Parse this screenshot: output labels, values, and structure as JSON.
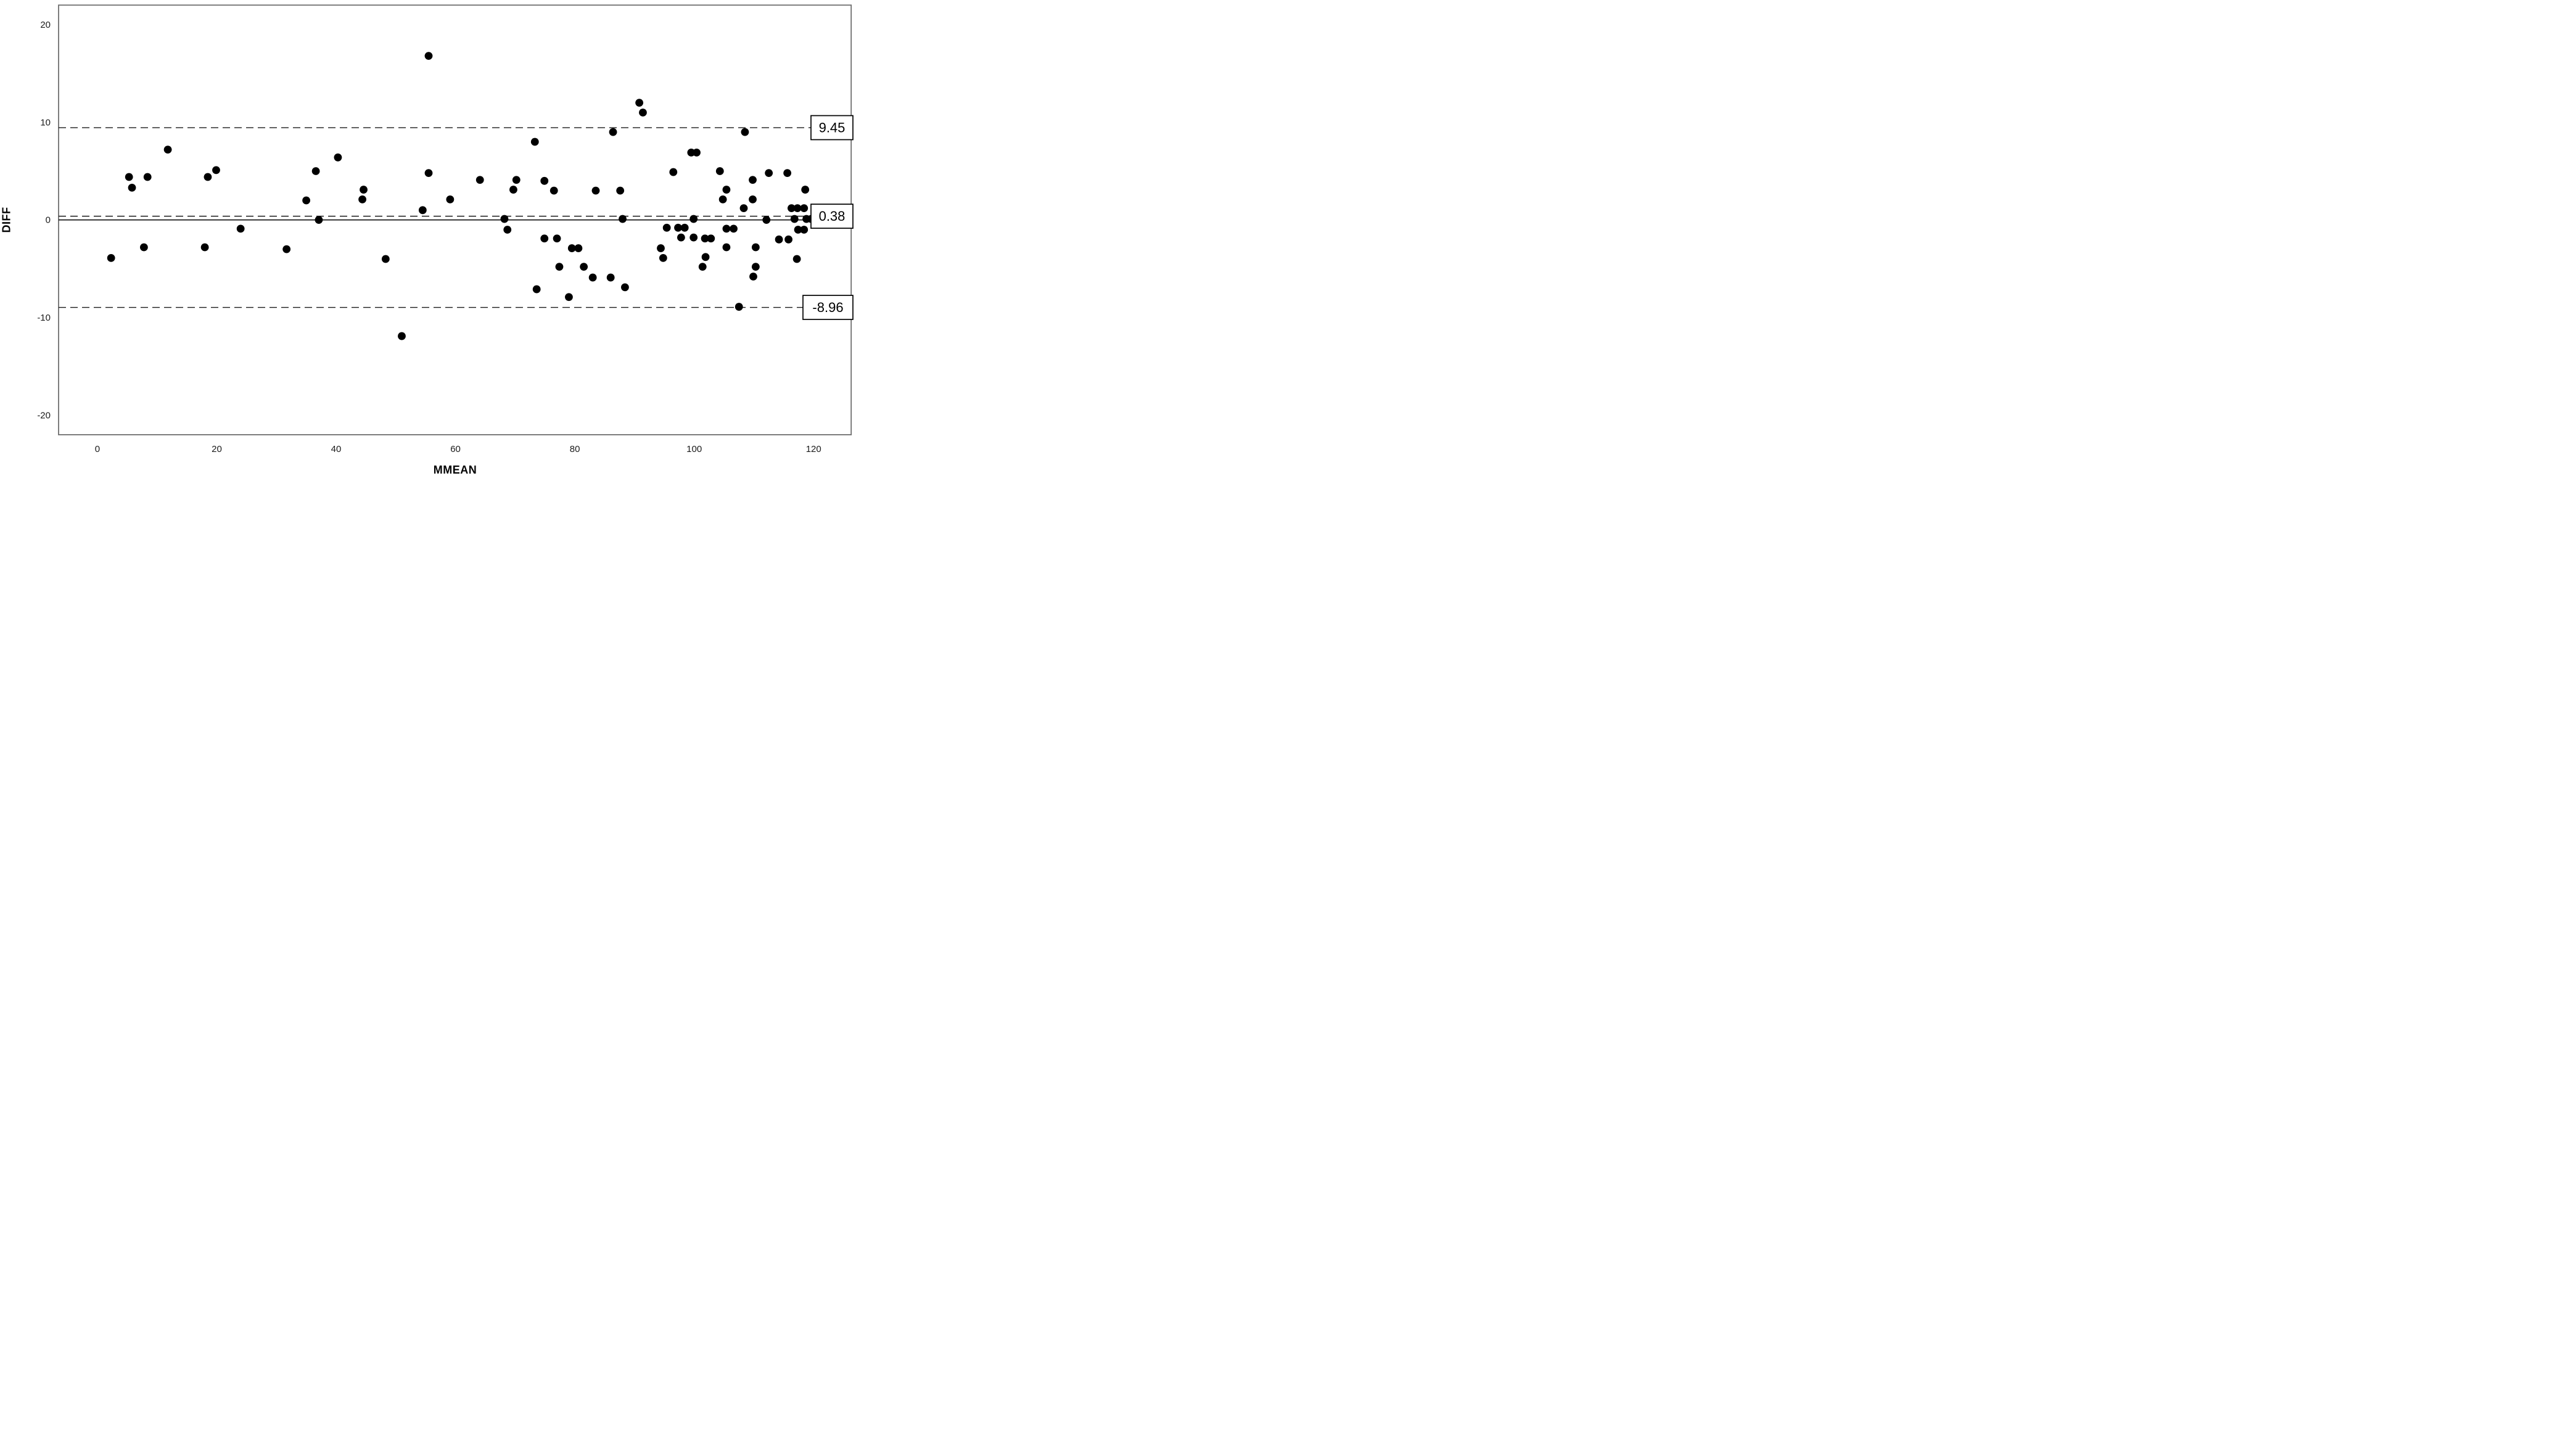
{
  "chart_data": {
    "type": "scatter",
    "title": "",
    "xlabel": "MMEAN",
    "ylabel": "DIFF",
    "xlim": [
      -6.5,
      126.3
    ],
    "ylim": [
      -22,
      22
    ],
    "x_ticks": [
      0,
      20,
      40,
      60,
      80,
      100,
      120
    ],
    "y_ticks": [
      20,
      10,
      0,
      -10,
      -20
    ],
    "grid": false,
    "legend": null,
    "point_color": "#000000",
    "frame_color": "#6e6e6e",
    "line_color": "#1a1a1a",
    "reference_lines": [
      {
        "value": 9.45,
        "label": "9.45",
        "style": "dashed"
      },
      {
        "value": 0.38,
        "label": "0.38",
        "style": "dashed"
      },
      {
        "value": 0.0,
        "label": "",
        "style": "solid"
      },
      {
        "value": -8.96,
        "label": "-8.96",
        "style": "dashed"
      }
    ],
    "points": [
      [
        2.3,
        -3.9
      ],
      [
        5.3,
        4.4
      ],
      [
        5.8,
        3.3
      ],
      [
        8.4,
        4.4
      ],
      [
        7.8,
        -2.8
      ],
      [
        11.8,
        7.2
      ],
      [
        18.0,
        -2.8
      ],
      [
        18.5,
        4.4
      ],
      [
        19.9,
        5.1
      ],
      [
        24.0,
        -0.9
      ],
      [
        31.7,
        -3.0
      ],
      [
        35.0,
        2.0
      ],
      [
        36.6,
        5.0
      ],
      [
        37.1,
        0.0
      ],
      [
        40.3,
        6.4
      ],
      [
        44.4,
        2.1
      ],
      [
        44.6,
        3.1
      ],
      [
        48.3,
        -4.0
      ],
      [
        51.0,
        -11.9
      ],
      [
        54.5,
        1.0
      ],
      [
        55.5,
        16.8
      ],
      [
        55.5,
        4.8
      ],
      [
        59.1,
        2.1
      ],
      [
        64.1,
        4.1
      ],
      [
        68.2,
        0.1
      ],
      [
        68.7,
        -1.0
      ],
      [
        69.7,
        3.1
      ],
      [
        70.2,
        4.1
      ],
      [
        73.3,
        8.0
      ],
      [
        73.6,
        -7.1
      ],
      [
        74.9,
        4.0
      ],
      [
        74.9,
        -1.9
      ],
      [
        76.5,
        3.0
      ],
      [
        77.0,
        -1.9
      ],
      [
        77.4,
        -4.8
      ],
      [
        79.0,
        -7.9
      ],
      [
        79.5,
        -2.9
      ],
      [
        80.6,
        -2.9
      ],
      [
        81.5,
        -4.8
      ],
      [
        83.0,
        -5.9
      ],
      [
        83.5,
        3.0
      ],
      [
        86.0,
        -5.9
      ],
      [
        86.4,
        9.0
      ],
      [
        87.6,
        3.0
      ],
      [
        88.0,
        0.1
      ],
      [
        88.4,
        -6.9
      ],
      [
        90.8,
        12.0
      ],
      [
        91.4,
        11.0
      ],
      [
        94.4,
        -2.9
      ],
      [
        94.8,
        -3.9
      ],
      [
        95.4,
        -0.8
      ],
      [
        96.5,
        4.9
      ],
      [
        97.3,
        -0.8
      ],
      [
        98.4,
        -0.8
      ],
      [
        97.8,
        -1.8
      ],
      [
        99.9,
        -1.8
      ],
      [
        99.5,
        6.9
      ],
      [
        100.4,
        6.9
      ],
      [
        99.9,
        0.1
      ],
      [
        101.8,
        -1.9
      ],
      [
        102.8,
        -1.9
      ],
      [
        101.9,
        -3.8
      ],
      [
        101.4,
        -4.8
      ],
      [
        104.3,
        5.0
      ],
      [
        104.8,
        2.1
      ],
      [
        105.4,
        3.1
      ],
      [
        105.4,
        -0.9
      ],
      [
        106.6,
        -0.9
      ],
      [
        105.4,
        -2.8
      ],
      [
        107.5,
        -8.9
      ],
      [
        108.3,
        1.2
      ],
      [
        108.5,
        9.0
      ],
      [
        109.8,
        4.1
      ],
      [
        109.8,
        2.1
      ],
      [
        110.3,
        -2.8
      ],
      [
        110.3,
        -4.8
      ],
      [
        109.9,
        -5.8
      ],
      [
        112.5,
        4.8
      ],
      [
        112.1,
        0.0
      ],
      [
        114.2,
        -2.0
      ],
      [
        115.8,
        -2.0
      ],
      [
        115.6,
        4.8
      ],
      [
        116.3,
        1.2
      ],
      [
        117.3,
        1.2
      ],
      [
        118.4,
        1.2
      ],
      [
        116.8,
        0.1
      ],
      [
        118.8,
        0.1
      ],
      [
        119.6,
        0.1
      ],
      [
        117.4,
        -1.0
      ],
      [
        118.4,
        -1.0
      ],
      [
        117.2,
        -4.0
      ],
      [
        118.6,
        3.1
      ]
    ]
  }
}
